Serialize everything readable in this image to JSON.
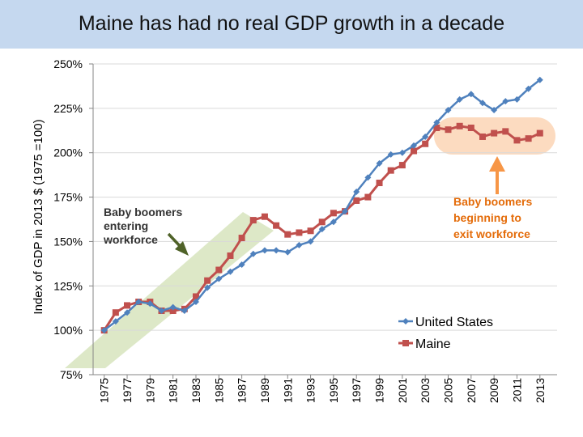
{
  "title": "Maine has had no real GDP growth in a decade",
  "colors": {
    "title_bg": "#c5d8ef",
    "us_line": "#4f81bd",
    "me_line": "#c0504d",
    "entry_band": "#d7e4bd",
    "exit_band": "#fbd5b5",
    "arrow_green": "#4f6228",
    "arrow_orange": "#f79646",
    "exit_text": "#e46c0a"
  },
  "chart_data": {
    "type": "line",
    "title": "Maine has had no real GDP growth in a decade",
    "ylabel": "Index of GDP in 2013 $ (1975 =100)",
    "xlabel": "",
    "ylim": [
      75,
      250
    ],
    "yticks": [
      75,
      100,
      125,
      150,
      175,
      200,
      225,
      250
    ],
    "ytick_labels": [
      "75%",
      "100%",
      "125%",
      "150%",
      "175%",
      "200%",
      "225%",
      "250%"
    ],
    "x": [
      1975,
      1976,
      1977,
      1978,
      1979,
      1980,
      1981,
      1982,
      1983,
      1984,
      1985,
      1986,
      1987,
      1988,
      1989,
      1990,
      1991,
      1992,
      1993,
      1994,
      1995,
      1996,
      1997,
      1998,
      1999,
      2000,
      2001,
      2002,
      2003,
      2004,
      2005,
      2006,
      2007,
      2008,
      2009,
      2010,
      2011,
      2012,
      2013
    ],
    "xtick_labels": [
      "1975",
      "1977",
      "1979",
      "1981",
      "1983",
      "1985",
      "1987",
      "1989",
      "1991",
      "1993",
      "1995",
      "1997",
      "1999",
      "2001",
      "2003",
      "2005",
      "2007",
      "2009",
      "2011",
      "2013"
    ],
    "series": [
      {
        "name": "United States",
        "marker": "diamond",
        "values": [
          100,
          105,
          110,
          116,
          115,
          111,
          113,
          111,
          116,
          124,
          129,
          133,
          137,
          143,
          145,
          145,
          144,
          148,
          150,
          157,
          161,
          167,
          178,
          186,
          194,
          199,
          200,
          204,
          209,
          217,
          224,
          230,
          233,
          228,
          224,
          229,
          230,
          236,
          241
        ]
      },
      {
        "name": "Maine",
        "marker": "square",
        "values": [
          100,
          110,
          114,
          116,
          116,
          111,
          111,
          112,
          119,
          128,
          134,
          142,
          152,
          162,
          164,
          159,
          154,
          155,
          156,
          161,
          166,
          167,
          173,
          175,
          183,
          190,
          193,
          201,
          205,
          214,
          213,
          215,
          214,
          209,
          211,
          212,
          207,
          208,
          211
        ]
      }
    ],
    "legend": {
      "entries": [
        "United States",
        "Maine"
      ],
      "position": "bottom-right"
    },
    "annotations": [
      {
        "text_lines": [
          "Baby boomers",
          "entering",
          "workforce"
        ]
      },
      {
        "text_lines": [
          "Baby boomers",
          "beginning to",
          "exit workforce"
        ]
      }
    ]
  }
}
